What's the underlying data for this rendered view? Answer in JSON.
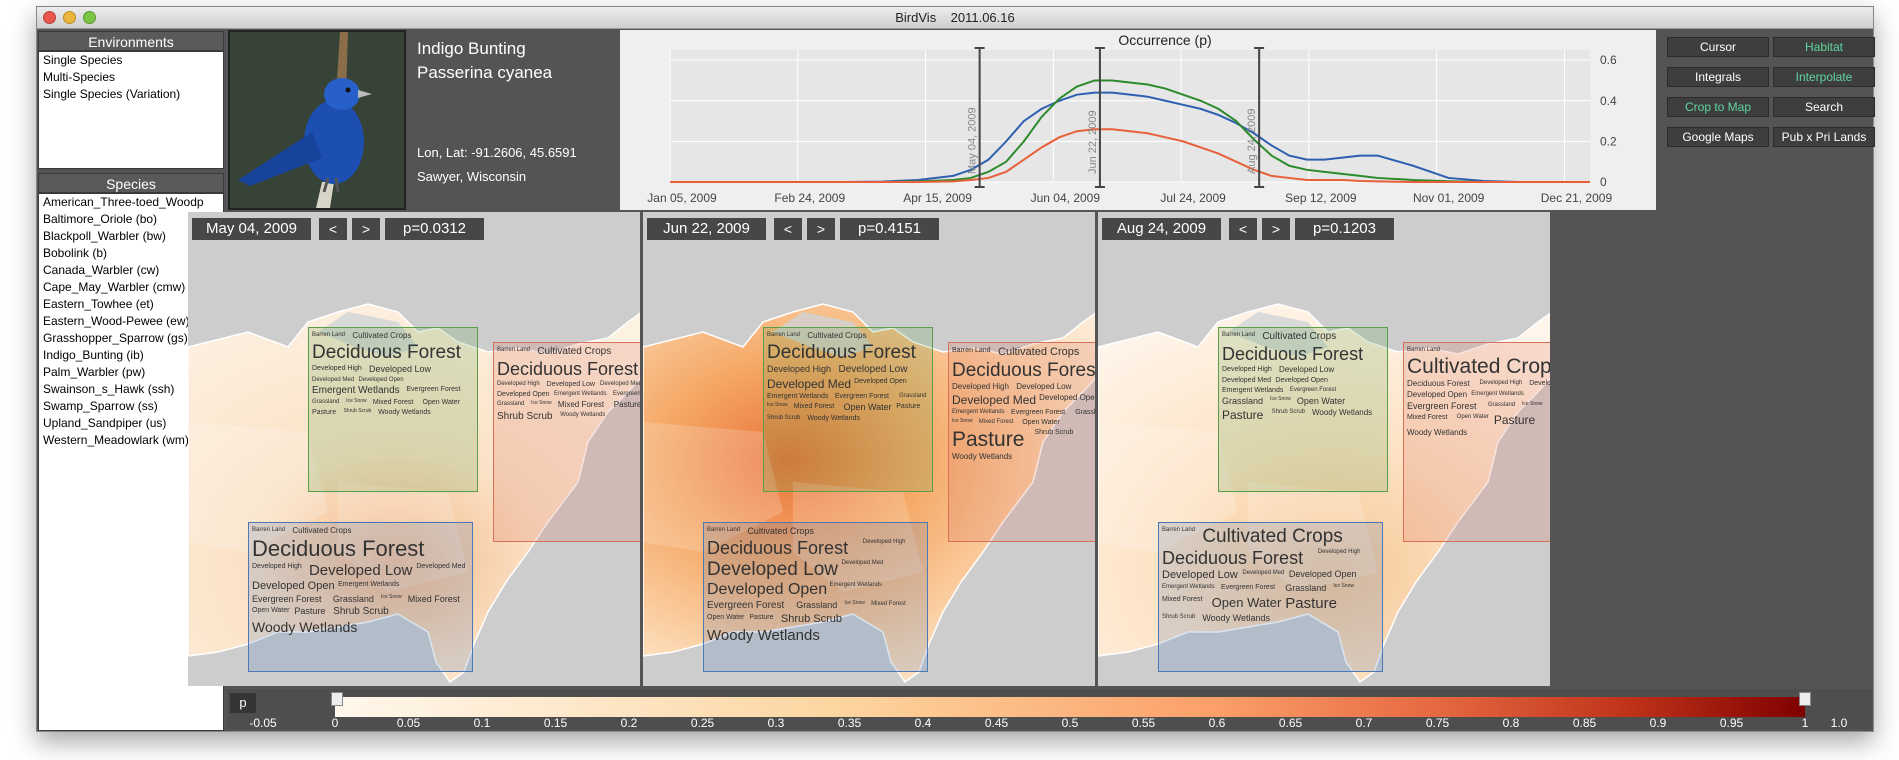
{
  "window": {
    "title": "BirdVis    2011.06.16"
  },
  "environments": {
    "heading": "Environments",
    "items": [
      "Single Species",
      "Multi-Species",
      "Single Species (Variation)"
    ]
  },
  "species": {
    "heading": "Species",
    "items": [
      "American_Three-toed_Woodp",
      "Baltimore_Oriole (bo)",
      "Blackpoll_Warbler (bw)",
      "Bobolink (b)",
      "Canada_Warbler (cw)",
      "Cape_May_Warbler (cmw)",
      "Eastern_Towhee (et)",
      "Eastern_Wood-Pewee (ew)",
      "Grasshopper_Sparrow (gs)",
      "Indigo_Bunting (ib)",
      "Palm_Warbler (pw)",
      "Swainson_s_Hawk (ssh)",
      "Swamp_Sparrow (ss)",
      "Upland_Sandpiper (us)",
      "Western_Meadowlark (wm)"
    ]
  },
  "bird": {
    "common": "Indigo Bunting",
    "latin": "Passerina cyanea",
    "coords": "Lon, Lat: -91.2606, 45.6591",
    "location": "Sawyer, Wisconsin"
  },
  "chart_data": {
    "type": "line",
    "title": "Occurrence (p)",
    "x_tick_labels": [
      "Jan 05, 2009",
      "Feb 24, 2009",
      "Apr 15, 2009",
      "Jun 04, 2009",
      "Jul 24, 2009",
      "Sep 12, 2009",
      "Nov 01, 2009",
      "Dec 21, 2009"
    ],
    "y_ticks": [
      0,
      0.2,
      0.4,
      0.6
    ],
    "ylim": [
      0,
      0.65
    ],
    "x_weeks": [
      0,
      4,
      8,
      10,
      12,
      14,
      16,
      17,
      18,
      19,
      20,
      21,
      22,
      23,
      24,
      25,
      26,
      27,
      28,
      29,
      30,
      31,
      32,
      33,
      34,
      35,
      36,
      37,
      38,
      39,
      40,
      42,
      44,
      46,
      48,
      50,
      52
    ],
    "series": [
      {
        "color": "#2f5fb0",
        "values": [
          0,
          0,
          0,
          0,
          0.002,
          0.01,
          0.03,
          0.06,
          0.11,
          0.2,
          0.3,
          0.36,
          0.4,
          0.43,
          0.44,
          0.44,
          0.43,
          0.42,
          0.4,
          0.38,
          0.36,
          0.33,
          0.29,
          0.24,
          0.18,
          0.13,
          0.11,
          0.11,
          0.12,
          0.13,
          0.13,
          0.08,
          0.02,
          0.005,
          0,
          0,
          0
        ]
      },
      {
        "color": "#2d8a2d",
        "values": [
          0,
          0,
          0,
          0,
          0,
          0.003,
          0.01,
          0.02,
          0.05,
          0.1,
          0.2,
          0.32,
          0.41,
          0.47,
          0.5,
          0.5,
          0.49,
          0.48,
          0.46,
          0.43,
          0.4,
          0.36,
          0.3,
          0.21,
          0.13,
          0.08,
          0.06,
          0.05,
          0.04,
          0.03,
          0.02,
          0.01,
          0.004,
          0,
          0,
          0,
          0
        ]
      },
      {
        "color": "#e8603a",
        "values": [
          0,
          0,
          0,
          0,
          0,
          0,
          0.003,
          0.01,
          0.02,
          0.05,
          0.11,
          0.17,
          0.22,
          0.25,
          0.26,
          0.26,
          0.25,
          0.24,
          0.22,
          0.2,
          0.17,
          0.14,
          0.1,
          0.06,
          0.03,
          0.02,
          0.01,
          0.01,
          0.01,
          0.005,
          0.003,
          0,
          0,
          0,
          0,
          0,
          0
        ]
      }
    ],
    "markers": [
      {
        "label": "May 04, 2009",
        "week": 17.5
      },
      {
        "label": "Jun 22, 2009",
        "week": 24.3
      },
      {
        "label": "Aug 24, 2009",
        "week": 33.3
      }
    ]
  },
  "controls": [
    {
      "label": "Cursor",
      "on": false
    },
    {
      "label": "Habitat",
      "on": true
    },
    {
      "label": "Integrals",
      "on": false
    },
    {
      "label": "Interpolate",
      "on": true
    },
    {
      "label": "Crop to Map",
      "on": true
    },
    {
      "label": "Search",
      "on": false
    },
    {
      "label": "Google Maps",
      "on": false
    },
    {
      "label": "Pub x Pri Lands",
      "on": false
    }
  ],
  "maps": [
    {
      "date": "May 04, 2009",
      "prev": "<",
      "next": ">",
      "p": "p=0.0312"
    },
    {
      "date": "Jun 22, 2009",
      "prev": "<",
      "next": ">",
      "p": "p=0.4151"
    },
    {
      "date": "Aug 24, 2009",
      "prev": "<",
      "next": ">",
      "p": "p=0.1203"
    }
  ],
  "legend": {
    "symbol": "p",
    "ticks": [
      "-0.05",
      "0",
      "0.05",
      "0.1",
      "0.15",
      "0.2",
      "0.25",
      "0.3",
      "0.35",
      "0.4",
      "0.45",
      "0.5",
      "0.55",
      "0.6",
      "0.65",
      "0.7",
      "0.75",
      "0.8",
      "0.85",
      "0.9",
      "0.95",
      "1",
      "1.0"
    ]
  },
  "habitat_clouds": [
    [
      {
        "color": "#5a9e4a",
        "words": [
          [
            "Barren Land",
            6
          ],
          [
            "Cultivated Crops",
            8
          ],
          [
            "Deciduous Forest",
            19
          ],
          [
            "Developed High",
            7
          ],
          [
            "Developed Low",
            9
          ],
          [
            "Developed Med",
            6
          ],
          [
            "Developed Open",
            6
          ],
          [
            "Emergent Wetlands",
            10
          ],
          [
            "Evergreen Forest",
            7
          ],
          [
            "Grassland",
            6
          ],
          [
            "Ice Snow",
            5
          ],
          [
            "Mixed Forest",
            7
          ],
          [
            "Open Water",
            7
          ],
          [
            "Pasture",
            7
          ],
          [
            "Shrub Scrub",
            5
          ],
          [
            "Woody Wetlands",
            7
          ]
        ]
      },
      {
        "color": "#d9705a",
        "words": [
          [
            "Barren Land",
            6
          ],
          [
            "Cultivated Crops",
            10
          ],
          [
            "Deciduous Forest",
            18
          ],
          [
            "Developed High",
            6
          ],
          [
            "Developed Low",
            7
          ],
          [
            "Developed Med",
            6
          ],
          [
            "Developed Open",
            7
          ],
          [
            "Emergent Wetlands",
            6
          ],
          [
            "Evergreen Forest",
            6
          ],
          [
            "Grassland",
            6
          ],
          [
            "Ice Snow",
            5
          ],
          [
            "Mixed Forest",
            8
          ],
          [
            "Pasture",
            8
          ],
          [
            "Shrub Scrub",
            10
          ],
          [
            "Woody Wetlands",
            6
          ]
        ]
      },
      {
        "color": "#4a78b8",
        "words": [
          [
            "Barren Land",
            6
          ],
          [
            "Cultivated Crops",
            8
          ],
          [
            "Deciduous Forest",
            22
          ],
          [
            "Developed High",
            7
          ],
          [
            "Developed Low",
            15
          ],
          [
            "Developed Med",
            7
          ],
          [
            "Developed Open",
            11
          ],
          [
            "Emergent Wetlands",
            7
          ],
          [
            "Evergreen Forest",
            9
          ],
          [
            "Grassland",
            9
          ],
          [
            "Ice Snow",
            5
          ],
          [
            "Mixed Forest",
            9
          ],
          [
            "Open Water",
            7
          ],
          [
            "Pasture",
            9
          ],
          [
            "Shrub Scrub",
            10
          ],
          [
            "Woody Wetlands",
            14
          ]
        ]
      }
    ],
    [
      {
        "color": "#5a9e4a",
        "words": [
          [
            "Barren Land",
            6
          ],
          [
            "Cultivated Crops",
            8
          ],
          [
            "Deciduous Forest",
            19
          ],
          [
            "Developed High",
            9
          ],
          [
            "Developed Low",
            10
          ],
          [
            "Developed Med",
            12
          ],
          [
            "Developed Open",
            7
          ],
          [
            "Emergent Wetlands",
            7
          ],
          [
            "Evergreen Forest",
            7
          ],
          [
            "Grassland",
            6
          ],
          [
            "Ice Snow",
            5
          ],
          [
            "Mixed Forest",
            7
          ],
          [
            "Open Water",
            9
          ],
          [
            "Pasture",
            7
          ],
          [
            "Shrub Scrub",
            6
          ],
          [
            "Woody Wetlands",
            7
          ]
        ]
      },
      {
        "color": "#d9705a",
        "words": [
          [
            "Barren Land",
            7
          ],
          [
            "Cultivated Crops",
            11
          ],
          [
            "Deciduous Forest",
            19
          ],
          [
            "Developed High",
            8
          ],
          [
            "Developed Low",
            8
          ],
          [
            "Developed Med",
            12
          ],
          [
            "Developed Open",
            8
          ],
          [
            "Emergent Wetlands",
            6
          ],
          [
            "Evergreen Forest",
            7
          ],
          [
            "Grassland",
            7
          ],
          [
            "Ice Snow",
            5
          ],
          [
            "Mixed Forest",
            6
          ],
          [
            "Open Water",
            7
          ],
          [
            "Pasture",
            21
          ],
          [
            "Shrub Scrub",
            7
          ],
          [
            "Woody Wetlands",
            8
          ]
        ]
      },
      {
        "color": "#4a78b8",
        "words": [
          [
            "Barren Land",
            6
          ],
          [
            "Cultivated Crops",
            9
          ],
          [
            "Deciduous Forest",
            18
          ],
          [
            "Developed High",
            6
          ],
          [
            "Developed Low",
            19
          ],
          [
            "Developed Med",
            6
          ],
          [
            "Developed Open",
            16
          ],
          [
            "Emergent Wetlands",
            6
          ],
          [
            "Evergreen Forest",
            10
          ],
          [
            "Grassland",
            9
          ],
          [
            "Ice Snow",
            5
          ],
          [
            "Mixed Forest",
            6
          ],
          [
            "Open Water",
            7
          ],
          [
            "Pasture",
            7
          ],
          [
            "Shrub Scrub",
            11
          ],
          [
            "Woody Wetlands",
            15
          ]
        ]
      }
    ],
    [
      {
        "color": "#5a9e4a",
        "words": [
          [
            "Barren Land",
            6
          ],
          [
            "Cultivated Crops",
            10
          ],
          [
            "Deciduous Forest",
            18
          ],
          [
            "Developed High",
            7
          ],
          [
            "Developed Low",
            8
          ],
          [
            "Developed Med",
            7
          ],
          [
            "Developed Open",
            7
          ],
          [
            "Emergent Wetlands",
            7
          ],
          [
            "Evergreen Forest",
            6
          ],
          [
            "Grassland",
            9
          ],
          [
            "Ice Snow",
            5
          ],
          [
            "Open Water",
            9
          ],
          [
            "Pasture",
            12
          ],
          [
            "Shrub Scrub",
            6
          ],
          [
            "Woody Wetlands",
            8
          ]
        ]
      },
      {
        "color": "#d9705a",
        "words": [
          [
            "Barren Land",
            6
          ],
          [
            "Cultivated Crops",
            21
          ],
          [
            "Deciduous Forest",
            8
          ],
          [
            "Developed High",
            6
          ],
          [
            "Developed Low",
            7
          ],
          [
            "Developed Open",
            8
          ],
          [
            "Emergent Wetlands",
            6
          ],
          [
            "Evergreen Forest",
            9
          ],
          [
            "Grassland",
            6
          ],
          [
            "Ice Snow",
            5
          ],
          [
            "Mixed Forest",
            7
          ],
          [
            "Open Water",
            6
          ],
          [
            "Pasture",
            12
          ],
          [
            "Woody Wetlands",
            8
          ]
        ]
      },
      {
        "color": "#4a78b8",
        "words": [
          [
            "Barren Land",
            6
          ],
          [
            "Cultivated Crops",
            19
          ],
          [
            "Deciduous Forest",
            18
          ],
          [
            "Developed High",
            6
          ],
          [
            "Developed Low",
            11
          ],
          [
            "Developed Med",
            6
          ],
          [
            "Developed Open",
            9
          ],
          [
            "Emergent Wetlands",
            6
          ],
          [
            "Evergreen Forest",
            7
          ],
          [
            "Grassland",
            9
          ],
          [
            "Ice Snow",
            5
          ],
          [
            "Mixed Forest",
            7
          ],
          [
            "Open Water",
            13
          ],
          [
            "Pasture",
            15
          ],
          [
            "Shrub Scrub",
            6
          ],
          [
            "Woody Wetlands",
            9
          ]
        ]
      }
    ]
  ]
}
